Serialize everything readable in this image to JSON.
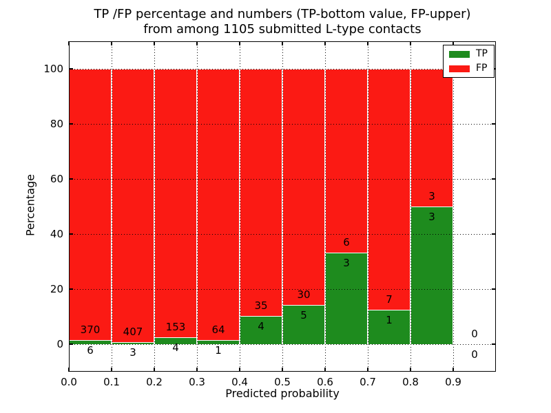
{
  "chart_data": {
    "type": "bar",
    "stacked": true,
    "units": "percent",
    "title": "TP /FP percentage and numbers (TP-bottom value, FP-upper)\nfrom among 1105 submitted L-type contacts",
    "title_lines": [
      "TP /FP percentage and numbers (TP-bottom value, FP-upper)",
      "from among 1105 submitted L-type contacts"
    ],
    "xlabel": "Predicted probability",
    "ylabel": "Percentage",
    "xlim": [
      0.0,
      1.0
    ],
    "ylim": [
      -10,
      110
    ],
    "xticks": [
      "0.0",
      "0.1",
      "0.2",
      "0.3",
      "0.4",
      "0.5",
      "0.6",
      "0.7",
      "0.8",
      "0.9"
    ],
    "yticks": [
      "0",
      "20",
      "40",
      "60",
      "80",
      "100"
    ],
    "grid": "dotted-black",
    "total_contacts": 1105,
    "legend": {
      "position": "upper right",
      "entries": [
        {
          "label": "TP",
          "color": "#1e8b1e"
        },
        {
          "label": "FP",
          "color": "#fb1a14"
        }
      ]
    },
    "bins": [
      {
        "range": [
          0.0,
          0.1
        ],
        "tp": 6,
        "fp": 370,
        "tp_pct": 1.6
      },
      {
        "range": [
          0.1,
          0.2
        ],
        "tp": 3,
        "fp": 407,
        "tp_pct": 0.73
      },
      {
        "range": [
          0.2,
          0.3
        ],
        "tp": 4,
        "fp": 153,
        "tp_pct": 2.55
      },
      {
        "range": [
          0.3,
          0.4
        ],
        "tp": 1,
        "fp": 64,
        "tp_pct": 1.54
      },
      {
        "range": [
          0.4,
          0.5
        ],
        "tp": 4,
        "fp": 35,
        "tp_pct": 10.26
      },
      {
        "range": [
          0.5,
          0.6
        ],
        "tp": 5,
        "fp": 30,
        "tp_pct": 14.29
      },
      {
        "range": [
          0.6,
          0.7
        ],
        "tp": 3,
        "fp": 6,
        "tp_pct": 33.33
      },
      {
        "range": [
          0.7,
          0.8
        ],
        "tp": 1,
        "fp": 7,
        "tp_pct": 12.5
      },
      {
        "range": [
          0.8,
          0.9
        ],
        "tp": 3,
        "fp": 3,
        "tp_pct": 50.0
      },
      {
        "range": [
          0.9,
          1.0
        ],
        "tp": 0,
        "fp": 0,
        "tp_pct": 0.0
      }
    ]
  },
  "colors": {
    "tp_green": "#1e8b1e",
    "fp_red": "#fb1a14",
    "grid": "#000000",
    "background": "#ffffff"
  }
}
